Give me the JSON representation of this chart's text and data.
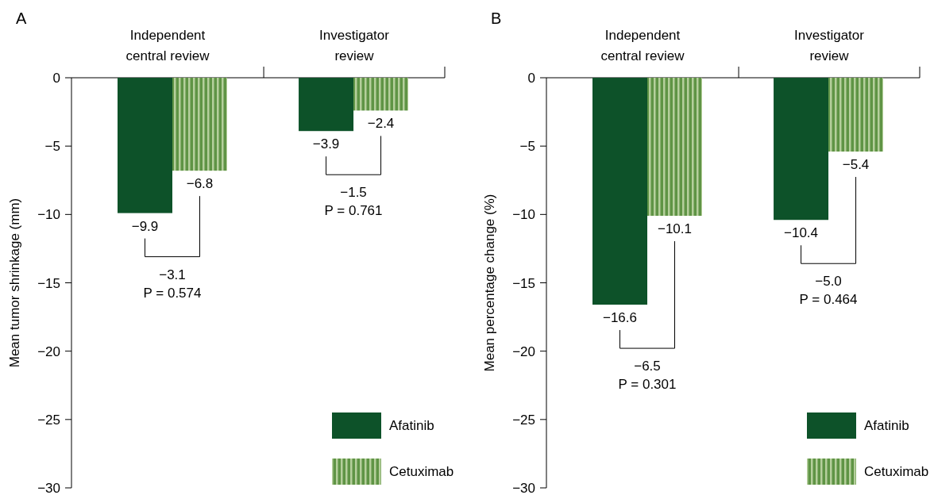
{
  "chart_data": [
    {
      "type": "bar",
      "title": "A",
      "ylabel": "Mean tumor shrinkage (mm)",
      "categories": [
        "Independent central review",
        "Investigator review"
      ],
      "series": [
        {
          "name": "Afatinib",
          "color": "#0d5229",
          "values": [
            -9.9,
            -3.9
          ]
        },
        {
          "name": "Cetuximab",
          "color": "#5f9445",
          "values": [
            -6.8,
            -2.4
          ]
        }
      ],
      "ylim": [
        -30,
        0
      ],
      "yticks": [
        {
          "value": -30,
          "label": "−30"
        },
        {
          "value": -25,
          "label": "−25"
        },
        {
          "value": -20,
          "label": "−20"
        },
        {
          "value": -15,
          "label": "−15"
        },
        {
          "value": -10,
          "label": "−10"
        },
        {
          "value": -5,
          "label": "−5"
        },
        0
      ],
      "data_labels": true,
      "legend": "bottom right",
      "annotations": [
        "−3.1\nP = 0.574",
        "−1.5\nP = 0.761"
      ]
    },
    {
      "type": "bar",
      "title": "B",
      "ylabel": "Mean percentage change (%)",
      "categories": [
        "Independent central review",
        "Investigator review"
      ],
      "series": [
        {
          "name": "Afatinib",
          "color": "#0d5229",
          "values": [
            -16.6,
            -10.4
          ]
        },
        {
          "name": "Cetuximab",
          "color": "#5f9445",
          "values": [
            -10.1,
            -5.4
          ]
        }
      ],
      "ylim": [
        -30,
        0
      ],
      "yticks": [
        {
          "value": -30,
          "label": "−30"
        },
        {
          "value": -25,
          "label": "−25"
        },
        {
          "value": -20,
          "label": "−20"
        },
        {
          "value": -15,
          "label": "−15"
        },
        {
          "value": -10,
          "label": "−10"
        },
        {
          "value": -5,
          "label": "−5"
        },
        0
      ],
      "data_labels": true,
      "legend": "bottom right",
      "annotations": [
        "−6.5\nP = 0.301",
        "−5.0\nP = 0.464"
      ]
    }
  ]
}
